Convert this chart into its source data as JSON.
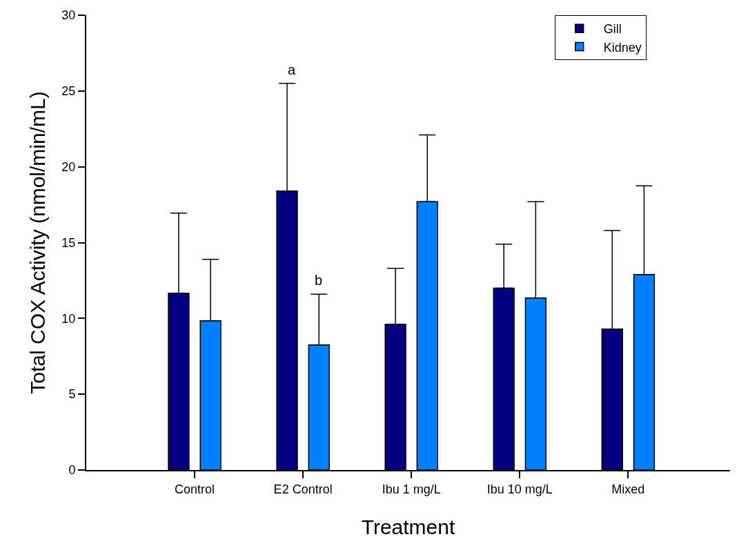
{
  "chart_data": {
    "type": "bar",
    "xlabel": "Treatment",
    "ylabel": "Total COX Activity (nmol/min/mL)",
    "categories": [
      "Control",
      "E2 Control",
      "Ibu 1 mg/L",
      "Ibu 10 mg/L",
      "Mixed"
    ],
    "series": [
      {
        "name": "Gill",
        "color": "#000080",
        "values": [
          11.65,
          18.4,
          9.6,
          12.0,
          9.3
        ],
        "errors": [
          [
            11.65,
            16.95
          ],
          [
            18.4,
            25.5
          ],
          [
            9.6,
            13.3
          ],
          [
            12.0,
            14.9
          ],
          [
            9.3,
            15.8
          ]
        ]
      },
      {
        "name": "Kidney",
        "color": "#0080ff",
        "values": [
          9.85,
          8.25,
          17.7,
          11.35,
          12.9
        ],
        "errors": [
          [
            9.85,
            13.9
          ],
          [
            8.25,
            11.6
          ],
          [
            17.7,
            22.1
          ],
          [
            11.35,
            17.7
          ],
          [
            12.9,
            18.75
          ]
        ]
      }
    ],
    "annotations": [
      "a",
      "b"
    ],
    "ylim": [
      0,
      30
    ],
    "yticks": [
      0,
      5,
      10,
      15,
      20,
      25,
      30
    ],
    "legend": "top right"
  }
}
